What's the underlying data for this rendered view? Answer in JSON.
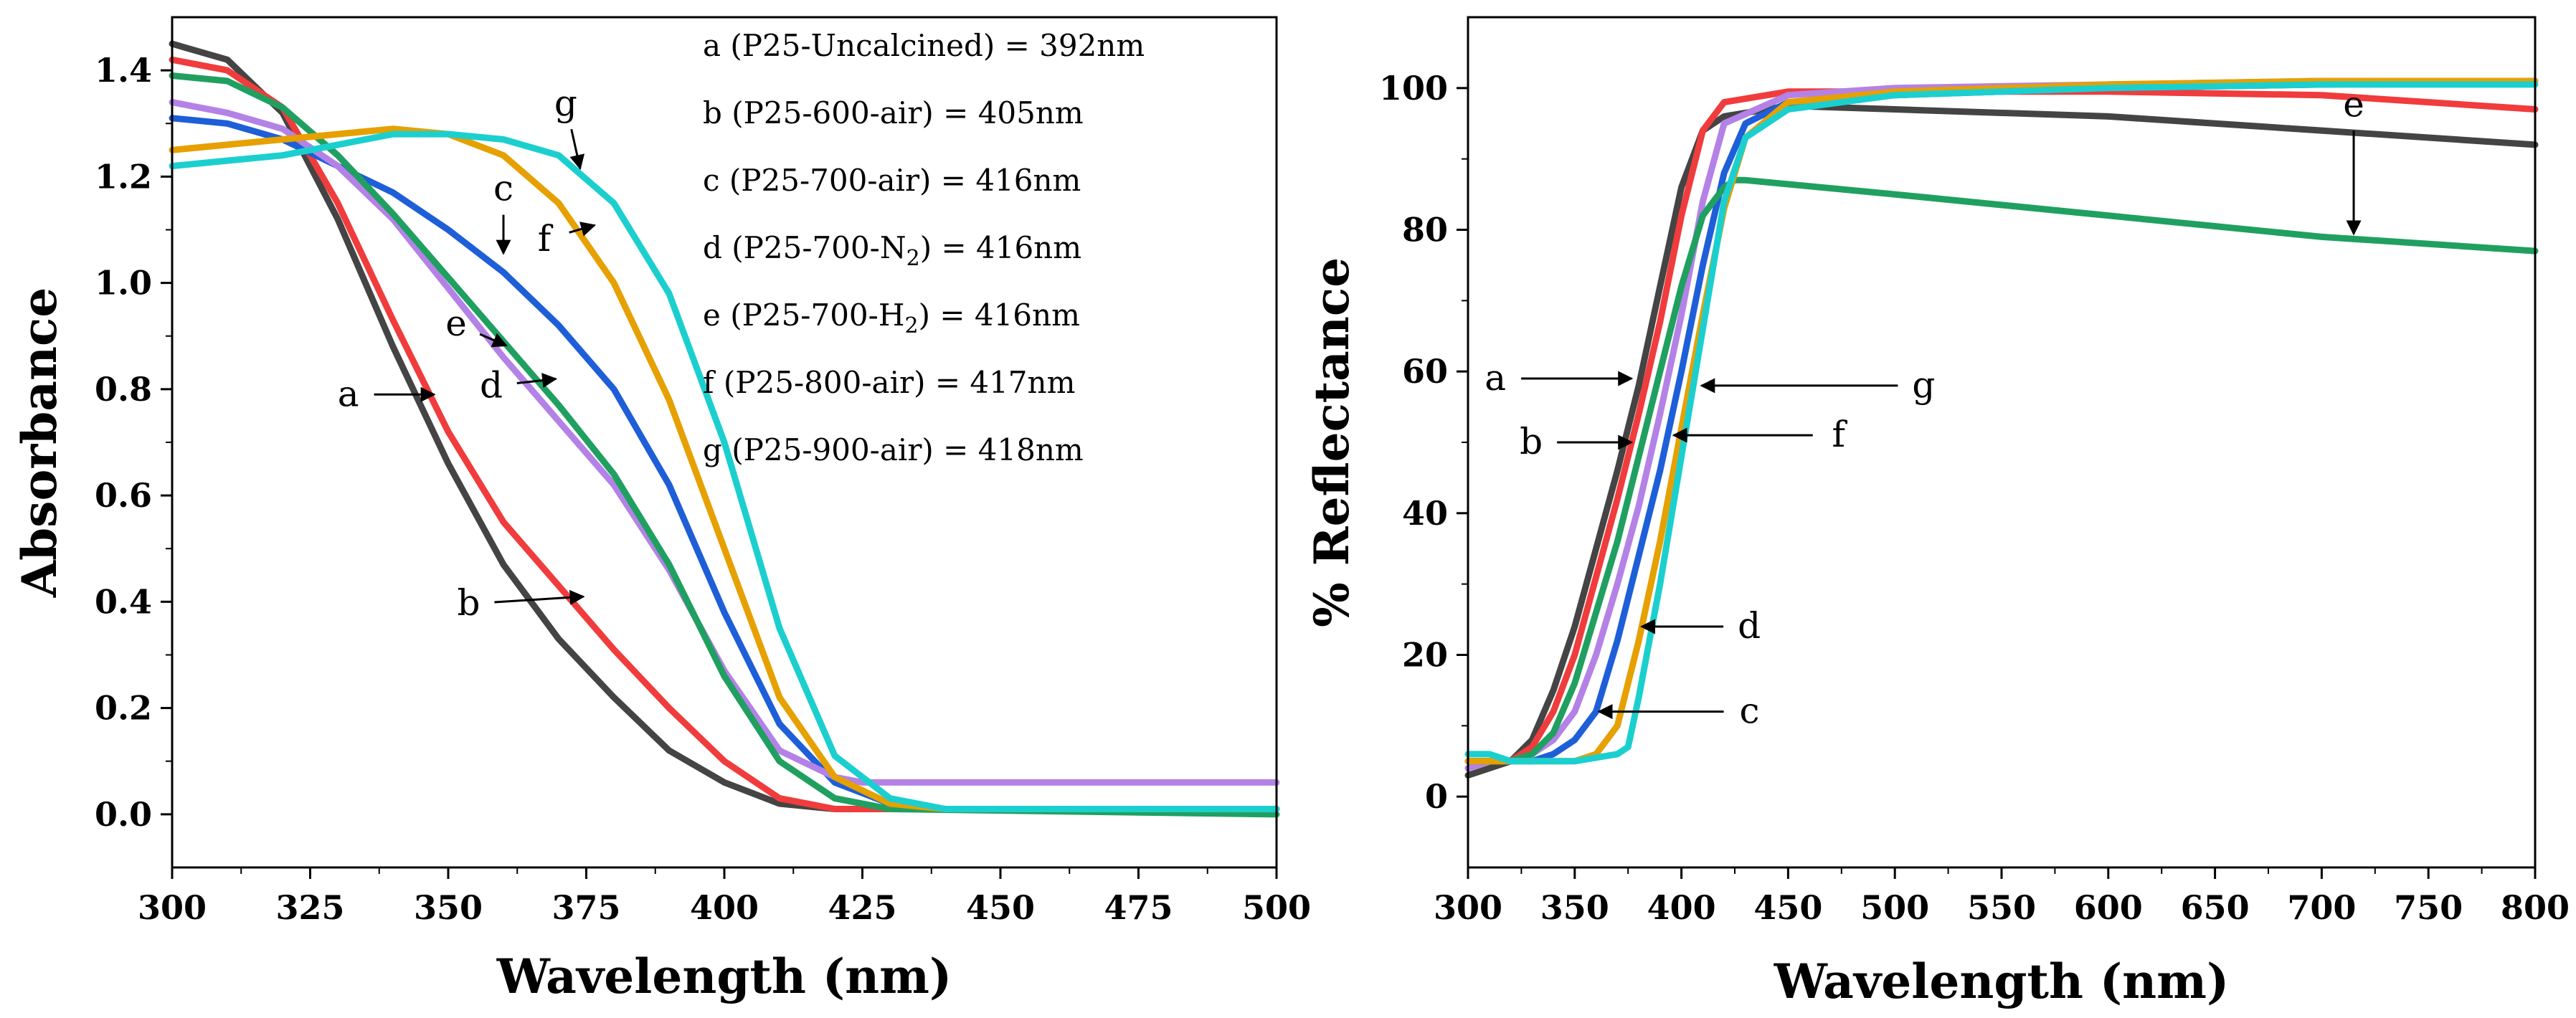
{
  "colors": {
    "a": "#444444",
    "b": "#f03c3c",
    "c": "#1e5fd8",
    "d": "#b482e6",
    "e": "#20a060",
    "f": "#e6a000",
    "g": "#1ccfcf"
  },
  "chart_data": [
    {
      "type": "line",
      "xlabel": "Wavelength (nm)",
      "ylabel": "Absorbance",
      "xlim": [
        300,
        500
      ],
      "ylim": [
        -0.1,
        1.5
      ],
      "x_ticks": [
        300,
        325,
        350,
        375,
        400,
        425,
        450,
        475,
        500
      ],
      "y_ticks": [
        0.0,
        0.2,
        0.4,
        0.6,
        0.8,
        1.0,
        1.2,
        1.4
      ],
      "legend": [
        {
          "text": "a (P25-Uncalcined) = 392nm"
        },
        {
          "text": "b (P25-600-air) = 405nm"
        },
        {
          "text": "c (P25-700-air) = 416nm"
        },
        {
          "text": "d (P25-700-N",
          "sub": "2",
          "tail": ") = 416nm"
        },
        {
          "text": "e (P25-700-H",
          "sub": "2",
          "tail": ") = 416nm"
        },
        {
          "text": "f (P25-800-air) = 417nm"
        },
        {
          "text": "g (P25-900-air) = 418nm"
        }
      ],
      "annotations": [
        {
          "label": "a",
          "x": 348,
          "y": 0.79
        },
        {
          "label": "b",
          "x": 375,
          "y": 0.41
        },
        {
          "label": "c",
          "x": 360,
          "y": 1.05
        },
        {
          "label": "d",
          "x": 370,
          "y": 0.82
        },
        {
          "label": "e",
          "x": 361,
          "y": 0.88
        },
        {
          "label": "f",
          "x": 377,
          "y": 1.11
        },
        {
          "label": "g",
          "x": 374,
          "y": 1.21
        }
      ],
      "series": [
        {
          "name": "a",
          "x": [
            300,
            310,
            320,
            330,
            340,
            350,
            360,
            370,
            380,
            390,
            400,
            410,
            420,
            430,
            500
          ],
          "values": [
            1.45,
            1.42,
            1.32,
            1.12,
            0.88,
            0.66,
            0.47,
            0.33,
            0.22,
            0.12,
            0.06,
            0.02,
            0.01,
            0.01,
            0.01
          ]
        },
        {
          "name": "b",
          "x": [
            300,
            310,
            320,
            330,
            340,
            350,
            360,
            370,
            380,
            390,
            400,
            410,
            420,
            430,
            500
          ],
          "values": [
            1.42,
            1.4,
            1.33,
            1.15,
            0.93,
            0.72,
            0.55,
            0.43,
            0.31,
            0.2,
            0.1,
            0.03,
            0.01,
            0.01,
            0.01
          ]
        },
        {
          "name": "c",
          "x": [
            300,
            310,
            320,
            330,
            340,
            350,
            360,
            370,
            380,
            390,
            400,
            410,
            420,
            430,
            440,
            500
          ],
          "values": [
            1.31,
            1.3,
            1.27,
            1.22,
            1.17,
            1.1,
            1.02,
            0.92,
            0.8,
            0.62,
            0.38,
            0.17,
            0.06,
            0.02,
            0.01,
            0.01
          ]
        },
        {
          "name": "d",
          "x": [
            300,
            310,
            320,
            330,
            340,
            350,
            360,
            370,
            380,
            390,
            400,
            410,
            420,
            425,
            500
          ],
          "values": [
            1.34,
            1.32,
            1.29,
            1.22,
            1.12,
            0.99,
            0.86,
            0.74,
            0.62,
            0.46,
            0.27,
            0.12,
            0.07,
            0.06,
            0.06
          ]
        },
        {
          "name": "e",
          "x": [
            300,
            310,
            320,
            330,
            340,
            350,
            360,
            370,
            380,
            390,
            400,
            410,
            420,
            430,
            500
          ],
          "values": [
            1.39,
            1.38,
            1.33,
            1.24,
            1.13,
            1.01,
            0.89,
            0.77,
            0.64,
            0.47,
            0.26,
            0.1,
            0.03,
            0.01,
            0.0
          ]
        },
        {
          "name": "f",
          "x": [
            300,
            310,
            320,
            330,
            340,
            350,
            360,
            370,
            380,
            390,
            400,
            410,
            420,
            430,
            440,
            500
          ],
          "values": [
            1.25,
            1.26,
            1.27,
            1.28,
            1.29,
            1.28,
            1.24,
            1.15,
            1.0,
            0.78,
            0.5,
            0.22,
            0.07,
            0.02,
            0.01,
            0.01
          ]
        },
        {
          "name": "g",
          "x": [
            300,
            310,
            320,
            330,
            340,
            350,
            360,
            370,
            380,
            390,
            400,
            410,
            420,
            430,
            440,
            500
          ],
          "values": [
            1.22,
            1.23,
            1.24,
            1.26,
            1.28,
            1.28,
            1.27,
            1.24,
            1.15,
            0.98,
            0.7,
            0.35,
            0.11,
            0.03,
            0.01,
            0.01
          ]
        }
      ]
    },
    {
      "type": "line",
      "xlabel": "Wavelength (nm)",
      "ylabel": "% Reflectance",
      "xlim": [
        300,
        800
      ],
      "ylim": [
        -10,
        110
      ],
      "x_ticks": [
        300,
        350,
        400,
        450,
        500,
        550,
        600,
        650,
        700,
        750,
        800
      ],
      "y_ticks": [
        0,
        20,
        40,
        60,
        80,
        100
      ],
      "annotations": [
        {
          "label": "a",
          "x": 378,
          "y": 59
        },
        {
          "label": "b",
          "x": 378,
          "y": 50
        },
        {
          "label": "c",
          "x": 360,
          "y": 12
        },
        {
          "label": "d",
          "x": 380,
          "y": 24
        },
        {
          "label": "e",
          "x": 715,
          "y": 79
        },
        {
          "label": "f",
          "x": 395,
          "y": 51
        },
        {
          "label": "g",
          "x": 408,
          "y": 58
        }
      ],
      "series": [
        {
          "name": "a",
          "x": [
            300,
            310,
            320,
            330,
            340,
            350,
            360,
            370,
            380,
            390,
            400,
            410,
            420,
            450,
            500,
            600,
            700,
            800
          ],
          "values": [
            3,
            4,
            5,
            8,
            15,
            24,
            35,
            46,
            58,
            72,
            86,
            94,
            96,
            97.5,
            97,
            96,
            94,
            92
          ]
        },
        {
          "name": "b",
          "x": [
            300,
            310,
            320,
            330,
            340,
            350,
            360,
            370,
            380,
            390,
            400,
            410,
            420,
            450,
            500,
            600,
            700,
            800
          ],
          "values": [
            4,
            5,
            5,
            7,
            12,
            20,
            31,
            42,
            54,
            67,
            82,
            94,
            98,
            99.5,
            99.5,
            99.5,
            99,
            97
          ]
        },
        {
          "name": "c",
          "x": [
            300,
            310,
            320,
            330,
            340,
            350,
            360,
            370,
            380,
            390,
            400,
            410,
            420,
            430,
            450,
            500,
            600,
            700,
            800
          ],
          "values": [
            5,
            5,
            5,
            5,
            6,
            8,
            12,
            22,
            34,
            46,
            60,
            75,
            88,
            95,
            98,
            99,
            100,
            100.5,
            101
          ]
        },
        {
          "name": "d",
          "x": [
            300,
            310,
            320,
            330,
            340,
            350,
            360,
            370,
            380,
            390,
            400,
            410,
            420,
            450,
            500,
            600,
            700,
            800
          ],
          "values": [
            4,
            5,
            5,
            6,
            8,
            12,
            20,
            30,
            41,
            54,
            68,
            84,
            95,
            99,
            100,
            100.5,
            101,
            101
          ]
        },
        {
          "name": "e",
          "x": [
            300,
            310,
            320,
            330,
            340,
            350,
            360,
            370,
            380,
            390,
            400,
            410,
            420,
            425,
            430,
            500,
            600,
            700,
            800
          ],
          "values": [
            5,
            5,
            5,
            6,
            9,
            16,
            26,
            36,
            48,
            60,
            72,
            82,
            86,
            87,
            87,
            85,
            82,
            79,
            77
          ]
        },
        {
          "name": "f",
          "x": [
            300,
            310,
            320,
            330,
            340,
            350,
            360,
            370,
            380,
            390,
            400,
            410,
            420,
            430,
            450,
            500,
            600,
            700,
            800
          ],
          "values": [
            5,
            5,
            5,
            5,
            5,
            5,
            6,
            10,
            22,
            36,
            52,
            68,
            83,
            93,
            98,
            99.5,
            100.5,
            101,
            101
          ]
        },
        {
          "name": "g",
          "x": [
            300,
            310,
            320,
            330,
            340,
            350,
            360,
            370,
            375,
            380,
            390,
            400,
            410,
            420,
            430,
            450,
            500,
            600,
            700,
            800
          ],
          "values": [
            6,
            6,
            5,
            5,
            5,
            5,
            5.5,
            6,
            7,
            14,
            30,
            48,
            66,
            84,
            93,
            97,
            99,
            100,
            100.5,
            100.5
          ]
        }
      ]
    }
  ]
}
